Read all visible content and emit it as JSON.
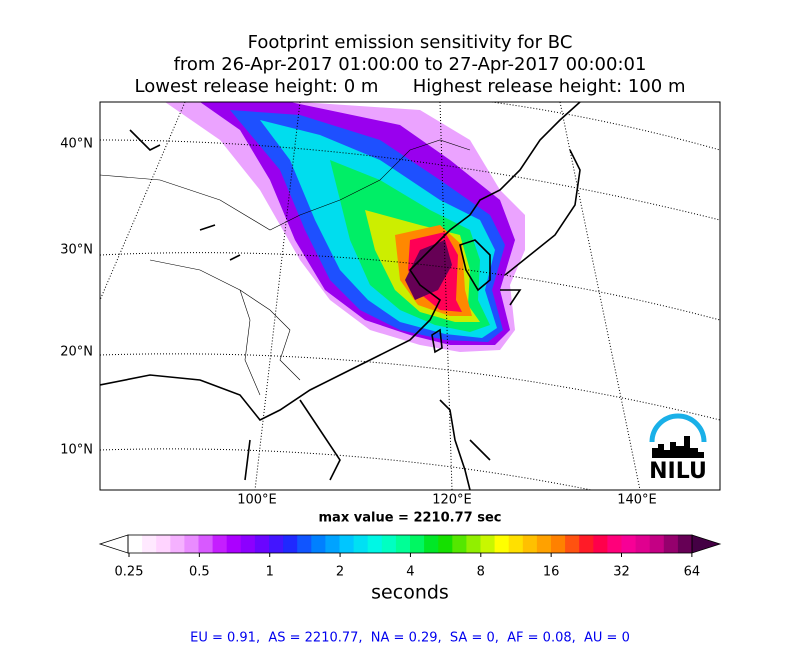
{
  "title": [
    "Footprint emission sensitivity for BC",
    "from 26-Apr-2017 01:00:00 to 27-Apr-2017 00:00:01",
    "Lowest release height: 0 m      Highest release height: 100 m"
  ],
  "map": {
    "lat_labels": [
      "40°N",
      "30°N",
      "20°N",
      "10°N"
    ],
    "lon_labels": [
      "100°E",
      "120°E",
      "140°E"
    ],
    "max_value": "max value = 2210.77 sec",
    "logo": "NILU"
  },
  "colorbar": {
    "ticks": [
      "0.25",
      "0.5",
      "1",
      "2",
      "4",
      "8",
      "16",
      "32",
      "64"
    ],
    "label": "seconds"
  },
  "footer": "EU = 0.91,  AS = 2210.77,  NA = 0.29,  SA = 0,  AF = 0.08,  AU = 0"
}
